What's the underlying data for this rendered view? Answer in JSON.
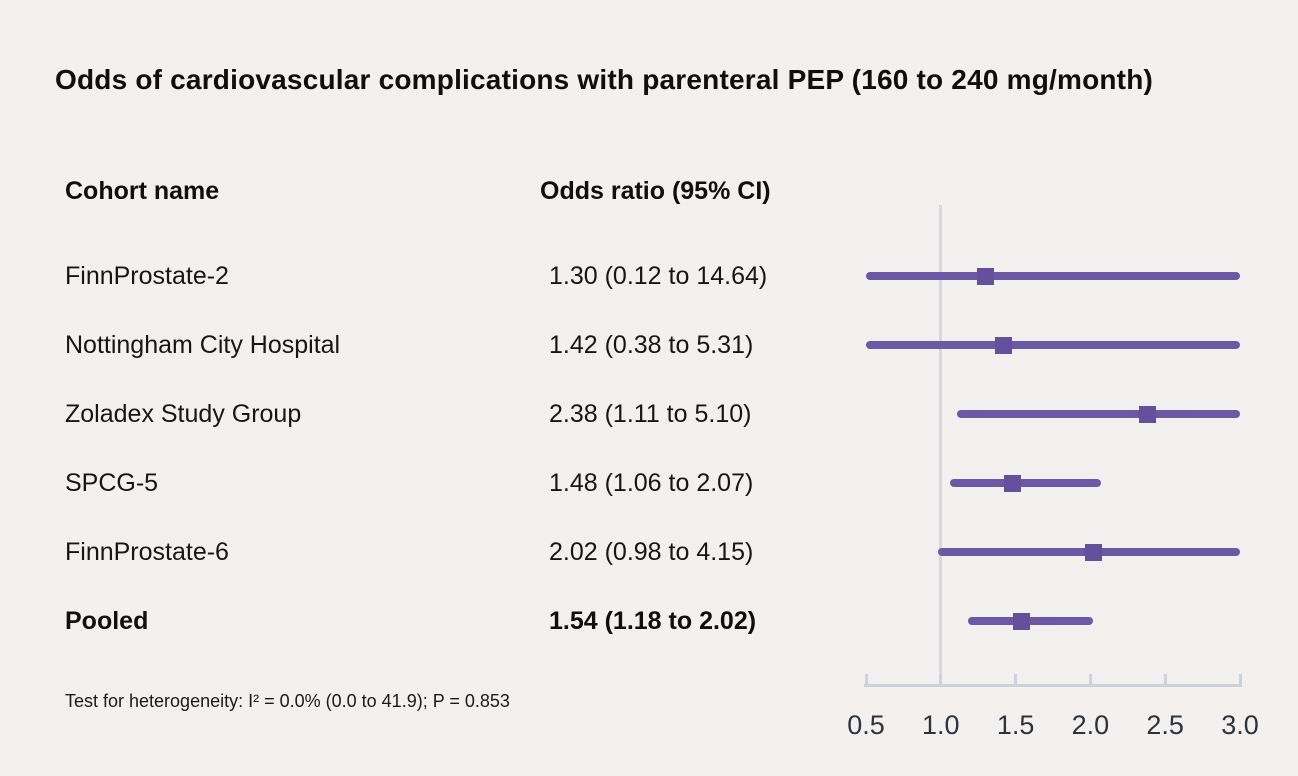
{
  "title": "Odds of cardiovascular complications with parenteral PEP (160 to 240 mg/month)",
  "table": {
    "col1_header": "Cohort name",
    "col2_header": "Odds ratio (95% CI)",
    "rows": [
      {
        "name": "FinnProstate-2",
        "or_label": "1.30 (0.12 to 14.64)",
        "bold": false
      },
      {
        "name": "Nottingham City Hospital",
        "or_label": "1.42 (0.38 to 5.31)",
        "bold": false
      },
      {
        "name": "Zoladex Study Group",
        "or_label": "2.38 (1.11 to 5.10)",
        "bold": false
      },
      {
        "name": "SPCG-5",
        "or_label": "1.48 (1.06 to 2.07)",
        "bold": false
      },
      {
        "name": "FinnProstate-6",
        "or_label": "2.02 (0.98 to 4.15)",
        "bold": false
      },
      {
        "name": "Pooled",
        "or_label": "1.54 (1.18 to 2.02)",
        "bold": true
      }
    ]
  },
  "footnote": "Test for heterogeneity: I² = 0.0% (0.0 to 41.9); P = 0.853",
  "chart_data": {
    "type": "forest",
    "title": "Odds of cardiovascular complications with parenteral PEP (160 to 240 mg/month)",
    "xlim": [
      0.5,
      3.0
    ],
    "reference_line": 1.0,
    "tick_values": [
      0.5,
      1.0,
      1.5,
      2.0,
      2.5,
      3.0
    ],
    "tick_labels": [
      "0.5",
      "1.0",
      "1.5",
      "2.0",
      "2.5",
      "3.0"
    ],
    "rows": [
      {
        "label": "FinnProstate-2",
        "or": 1.3,
        "ci_low": 0.12,
        "ci_high": 14.64,
        "pooled": false
      },
      {
        "label": "Nottingham City Hospital",
        "or": 1.42,
        "ci_low": 0.38,
        "ci_high": 5.31,
        "pooled": false
      },
      {
        "label": "Zoladex Study Group",
        "or": 2.38,
        "ci_low": 1.11,
        "ci_high": 5.1,
        "pooled": false
      },
      {
        "label": "SPCG-5",
        "or": 1.48,
        "ci_low": 1.06,
        "ci_high": 2.07,
        "pooled": false
      },
      {
        "label": "FinnProstate-6",
        "or": 2.02,
        "ci_low": 0.98,
        "ci_high": 4.15,
        "pooled": false
      },
      {
        "label": "Pooled",
        "or": 1.54,
        "ci_low": 1.18,
        "ci_high": 2.02,
        "pooled": true
      }
    ]
  },
  "colors": {
    "background": "#f2f1f0",
    "ci_line": "#6b59a5",
    "marker": "#64509b",
    "axis": "#cdd2db",
    "reference_line": "#d6d9e0",
    "tick_text": "#2f333a",
    "text": "#121212"
  }
}
